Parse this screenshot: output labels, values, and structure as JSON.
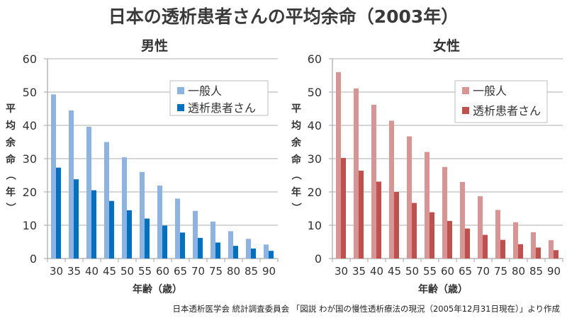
{
  "title": "日本の透析患者さんの平均余命（2003年）",
  "footer": "日本透析医学会 統計調査委員会 「図説 わが国の慢性透析療法の現況（2005年12月31日現在）」より作成",
  "colors": {
    "male_general": "#8db3e2",
    "male_dialysis": "#0070c0",
    "female_general": "#d99594",
    "female_dialysis": "#c0504d",
    "grid": "#bfbfbf",
    "axis": "#a6a6a6"
  },
  "chart_data": [
    {
      "type": "bar",
      "title": "男性",
      "xlabel": "年齢（歳）",
      "ylabel": "平均余命（年）",
      "ylim": [
        0,
        60
      ],
      "yticks": [
        "0",
        "10",
        "20",
        "30",
        "40",
        "50",
        "60"
      ],
      "grid": true,
      "legend_position": "top-right",
      "categories": [
        "30",
        "35",
        "40",
        "45",
        "50",
        "55",
        "60",
        "65",
        "70",
        "75",
        "80",
        "85",
        "90"
      ],
      "series": [
        {
          "name": "一般人",
          "values": [
            49.3,
            44.5,
            39.6,
            35.0,
            30.4,
            26.0,
            21.9,
            18.0,
            14.3,
            11.1,
            8.2,
            5.9,
            4.2
          ]
        },
        {
          "name": "透析患者さん",
          "values": [
            27.3,
            23.8,
            20.5,
            17.3,
            14.5,
            12.0,
            9.9,
            7.8,
            6.2,
            4.8,
            3.8,
            3.0,
            2.3
          ]
        }
      ]
    },
    {
      "type": "bar",
      "title": "女性",
      "xlabel": "年齢（歳）",
      "ylabel": "平均余命（年）",
      "ylim": [
        0,
        60
      ],
      "yticks": [
        "0",
        "10",
        "20",
        "30",
        "40",
        "50",
        "60"
      ],
      "grid": true,
      "legend_position": "top-right",
      "categories": [
        "30",
        "35",
        "40",
        "45",
        "50",
        "55",
        "60",
        "65",
        "70",
        "75",
        "80",
        "85",
        "90"
      ],
      "series": [
        {
          "name": "一般人",
          "values": [
            56.0,
            51.1,
            46.2,
            41.4,
            36.7,
            32.0,
            27.5,
            23.0,
            18.7,
            14.6,
            10.9,
            7.9,
            5.5
          ]
        },
        {
          "name": "透析患者さん",
          "values": [
            30.2,
            26.4,
            23.1,
            20.0,
            16.7,
            13.9,
            11.3,
            9.0,
            7.1,
            5.6,
            4.3,
            3.3,
            2.5
          ]
        }
      ]
    }
  ]
}
